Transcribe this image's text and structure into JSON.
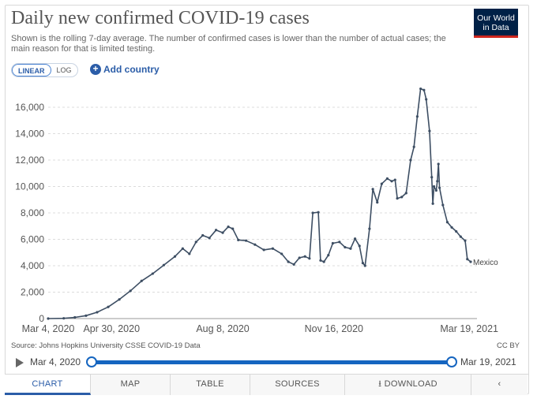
{
  "title": "Daily new confirmed COVID-19 cases",
  "subtitle": "Shown is the rolling 7-day average. The number of confirmed cases is lower than the number of actual cases; the main reason for that is limited testing.",
  "logo": {
    "line1": "Our World",
    "line2": "in Data"
  },
  "scale_toggle": {
    "linear": "LINEAR",
    "log": "LOG",
    "selected": "LINEAR"
  },
  "add_country_label": "Add country",
  "source": "Source: Johns Hopkins University CSSE COVID-19 Data",
  "license": "CC BY",
  "timeline": {
    "start": "Mar 4, 2020",
    "end": "Mar 19, 2021"
  },
  "tabs": [
    {
      "label": "CHART",
      "active": true
    },
    {
      "label": "MAP",
      "active": false
    },
    {
      "label": "TABLE",
      "active": false
    },
    {
      "label": "SOURCES",
      "active": false
    },
    {
      "label": "DOWNLOAD",
      "active": false
    },
    {
      "label": "",
      "active": false
    }
  ],
  "colors": {
    "line": "#3d4e63",
    "accent": "#2b5da8",
    "logo_bg": "#002147",
    "logo_stripe": "#ce261e"
  },
  "chart_data": {
    "type": "line",
    "title": "Daily new confirmed COVID-19 cases",
    "xlabel": "",
    "ylabel": "",
    "x_tick_labels": [
      "Mar 4, 2020",
      "Apr 30, 2020",
      "Aug 8, 2020",
      "Nov 16, 2020",
      "Mar 19, 2021"
    ],
    "x_tick_days": [
      0,
      57,
      157,
      257,
      380
    ],
    "y_ticks": [
      0,
      2000,
      4000,
      6000,
      8000,
      10000,
      12000,
      14000,
      16000
    ],
    "y_tick_labels": [
      "0",
      "2,000",
      "4,000",
      "6,000",
      "8,000",
      "10,000",
      "12,000",
      "14,000",
      "16,000"
    ],
    "ylim": [
      0,
      17600
    ],
    "grid": "horizontal dashed",
    "series": [
      {
        "name": "Mexico",
        "color": "#3d4e63",
        "points": [
          [
            "2020-03-04",
            0
          ],
          [
            "2020-03-18",
            20
          ],
          [
            "2020-03-28",
            90
          ],
          [
            "2020-04-07",
            220
          ],
          [
            "2020-04-17",
            480
          ],
          [
            "2020-04-27",
            880
          ],
          [
            "2020-05-07",
            1450
          ],
          [
            "2020-05-17",
            2100
          ],
          [
            "2020-05-27",
            2850
          ],
          [
            "2020-06-06",
            3400
          ],
          [
            "2020-06-16",
            4050
          ],
          [
            "2020-06-26",
            4700
          ],
          [
            "2020-07-03",
            5300
          ],
          [
            "2020-07-09",
            4900
          ],
          [
            "2020-07-15",
            5800
          ],
          [
            "2020-07-21",
            6300
          ],
          [
            "2020-07-27",
            6100
          ],
          [
            "2020-08-02",
            6700
          ],
          [
            "2020-08-08",
            6500
          ],
          [
            "2020-08-13",
            6950
          ],
          [
            "2020-08-17",
            6800
          ],
          [
            "2020-08-22",
            5950
          ],
          [
            "2020-08-29",
            5900
          ],
          [
            "2020-09-06",
            5600
          ],
          [
            "2020-09-14",
            5200
          ],
          [
            "2020-09-22",
            5300
          ],
          [
            "2020-09-30",
            4900
          ],
          [
            "2020-10-06",
            4300
          ],
          [
            "2020-10-11",
            4100
          ],
          [
            "2020-10-16",
            4600
          ],
          [
            "2020-10-21",
            4700
          ],
          [
            "2020-10-25",
            4550
          ],
          [
            "2020-10-28",
            8000
          ],
          [
            "2020-11-02",
            8050
          ],
          [
            "2020-11-04",
            4400
          ],
          [
            "2020-11-07",
            4300
          ],
          [
            "2020-11-11",
            4800
          ],
          [
            "2020-11-15",
            5700
          ],
          [
            "2020-11-21",
            5800
          ],
          [
            "2020-11-26",
            5400
          ],
          [
            "2020-12-01",
            5300
          ],
          [
            "2020-12-05",
            6050
          ],
          [
            "2020-12-09",
            5500
          ],
          [
            "2020-12-12",
            4200
          ],
          [
            "2020-12-14",
            4000
          ],
          [
            "2020-12-18",
            6800
          ],
          [
            "2020-12-21",
            9800
          ],
          [
            "2020-12-25",
            8800
          ],
          [
            "2020-12-29",
            10200
          ],
          [
            "2021-01-03",
            10600
          ],
          [
            "2021-01-07",
            10400
          ],
          [
            "2021-01-10",
            10500
          ],
          [
            "2021-01-12",
            9100
          ],
          [
            "2021-01-16",
            9200
          ],
          [
            "2021-01-20",
            9500
          ],
          [
            "2021-01-24",
            12000
          ],
          [
            "2021-01-27",
            13000
          ],
          [
            "2021-01-30",
            15300
          ],
          [
            "2021-02-02",
            17400
          ],
          [
            "2021-02-05",
            17300
          ],
          [
            "2021-02-07",
            16600
          ],
          [
            "2021-02-10",
            14200
          ],
          [
            "2021-02-12",
            10700
          ],
          [
            "2021-02-13",
            8700
          ],
          [
            "2021-02-14",
            10000
          ],
          [
            "2021-02-16",
            9700
          ],
          [
            "2021-02-17",
            10400
          ],
          [
            "2021-02-18",
            11700
          ],
          [
            "2021-02-19",
            9900
          ],
          [
            "2021-02-22",
            8600
          ],
          [
            "2021-02-26",
            7300
          ],
          [
            "2021-03-02",
            6900
          ],
          [
            "2021-03-06",
            6600
          ],
          [
            "2021-03-10",
            6200
          ],
          [
            "2021-03-14",
            5900
          ],
          [
            "2021-03-16",
            4500
          ],
          [
            "2021-03-19",
            4300
          ]
        ]
      }
    ]
  }
}
